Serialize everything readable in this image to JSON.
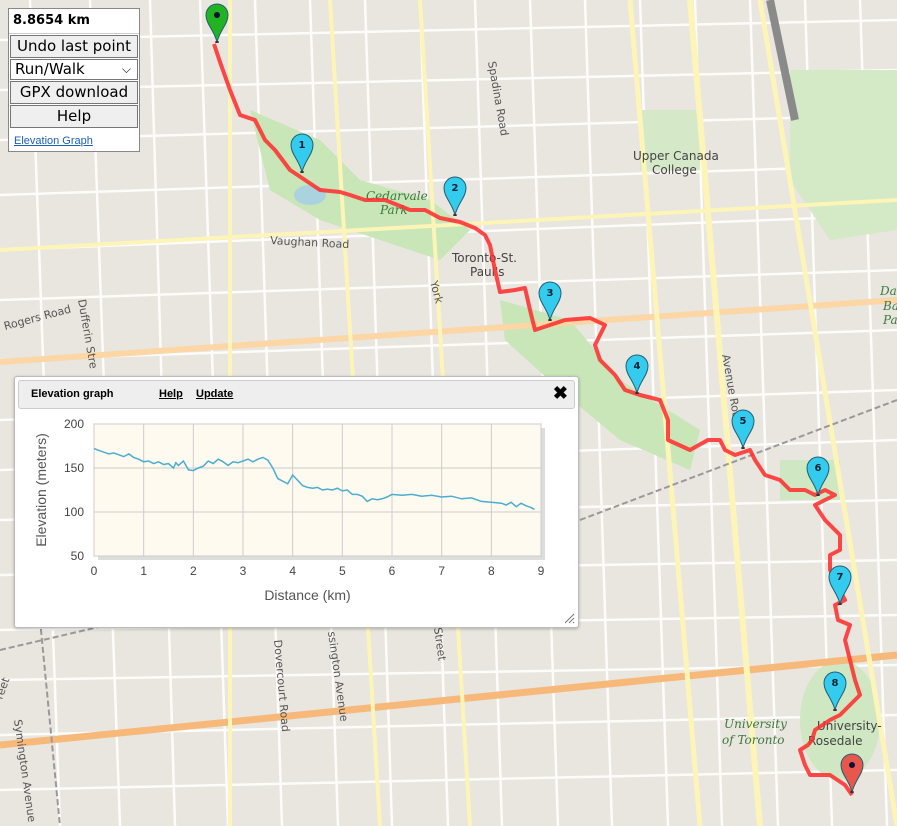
{
  "panel": {
    "distance": "8.8654 km",
    "undo_label": "Undo last point",
    "mode_value": "Run/Walk",
    "gpx_label": "GPX download",
    "help_label": "Help",
    "elevation_link": "Elevation Graph"
  },
  "map_labels": {
    "vaughan_road": "Vaughan Road",
    "rogers_road": "Rogers Road",
    "dufferin_street": "Dufferin Stre",
    "spadina_road": "Spadina Road",
    "avenue_road": "Avenue Road",
    "dovercourt_road": "Dovercourt Road",
    "ossington_avenue": "ssington Avenue",
    "bathurst_street": "Street",
    "symington_avenue": "Symington Avenue",
    "street_left": "reet",
    "upper_canada_college": [
      "Upper Canada",
      "College"
    ],
    "cedarvale_park": [
      "Cedarvale",
      "Park"
    ],
    "toronto_st_pauls": [
      "Toronto-St.",
      "Paul's"
    ],
    "york": "York",
    "university_of_toronto": [
      "University",
      "of Toronto"
    ],
    "university_rosedale": [
      "University-",
      "Rosedale"
    ],
    "davenport": [
      "Dav",
      "Ba",
      "Pa"
    ]
  },
  "route": {
    "color": "#ff2a2a",
    "markers": [
      "1",
      "2",
      "3",
      "4",
      "5",
      "6",
      "7",
      "8"
    ],
    "start_color": "#22b322",
    "end_color": "#e8574b",
    "waypoint_color": "#33ccee"
  },
  "elevation_window": {
    "title": "Elevation graph",
    "help_label": "Help",
    "update_label": "Update",
    "close_icon": "close-icon"
  },
  "chart_data": {
    "type": "line",
    "title": "",
    "xlabel": "Distance (km)",
    "ylabel": "Elevation (meters)",
    "xlim": [
      0,
      9
    ],
    "ylim": [
      50,
      200
    ],
    "x_ticks": [
      "0",
      "1",
      "2",
      "3",
      "4",
      "5",
      "6",
      "7",
      "8",
      "9"
    ],
    "y_ticks": [
      "50",
      "100",
      "150",
      "200"
    ],
    "line_color": "#4aaed0",
    "x": [
      0,
      0.1,
      0.2,
      0.3,
      0.4,
      0.5,
      0.6,
      0.7,
      0.8,
      0.9,
      1.0,
      1.1,
      1.2,
      1.3,
      1.4,
      1.5,
      1.6,
      1.65,
      1.7,
      1.8,
      1.9,
      2.0,
      2.1,
      2.2,
      2.3,
      2.4,
      2.5,
      2.6,
      2.7,
      2.8,
      2.9,
      3.0,
      3.1,
      3.2,
      3.3,
      3.4,
      3.5,
      3.6,
      3.7,
      3.8,
      3.9,
      4.0,
      4.1,
      4.2,
      4.3,
      4.4,
      4.5,
      4.6,
      4.7,
      4.8,
      4.9,
      5.0,
      5.1,
      5.2,
      5.3,
      5.4,
      5.5,
      5.6,
      5.7,
      5.8,
      5.9,
      6.0,
      6.2,
      6.4,
      6.6,
      6.8,
      7.0,
      7.2,
      7.4,
      7.6,
      7.8,
      8.0,
      8.2,
      8.3,
      8.4,
      8.5,
      8.6,
      8.7,
      8.8,
      8.87
    ],
    "y": [
      172,
      170,
      168,
      166,
      167,
      165,
      163,
      166,
      162,
      160,
      157,
      158,
      155,
      157,
      154,
      155,
      150,
      156,
      153,
      158,
      148,
      147,
      150,
      152,
      158,
      155,
      160,
      157,
      153,
      157,
      156,
      158,
      160,
      157,
      160,
      162,
      159,
      150,
      138,
      135,
      132,
      142,
      136,
      130,
      128,
      127,
      128,
      125,
      126,
      125,
      127,
      124,
      125,
      120,
      120,
      118,
      112,
      115,
      114,
      115,
      117,
      120,
      119,
      120,
      118,
      119,
      117,
      118,
      115,
      116,
      112,
      111,
      110,
      108,
      111,
      106,
      110,
      107,
      105,
      103
    ]
  }
}
